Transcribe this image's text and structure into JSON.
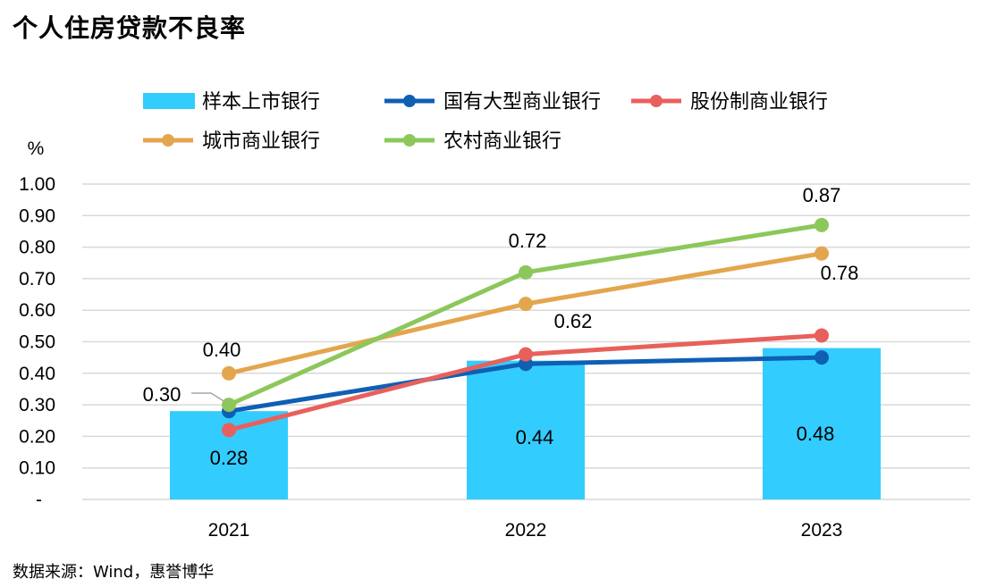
{
  "title": "个人住房贷款不良率",
  "source": "数据来源：Wind，惠誉博华",
  "chart_data": {
    "type": "bar+line",
    "ylabel": "%",
    "ylim": [
      0,
      1.0
    ],
    "y_ticks": [
      "-",
      "0.10",
      "0.20",
      "0.30",
      "0.40",
      "0.50",
      "0.60",
      "0.70",
      "0.80",
      "0.90",
      "1.00"
    ],
    "categories": [
      "2021",
      "2022",
      "2023"
    ],
    "bar_series": {
      "name": "样本上市银行",
      "color": "#33CCFF",
      "values": [
        0.28,
        0.44,
        0.48
      ]
    },
    "line_series": [
      {
        "name": "国有大型商业银行",
        "color": "#0F5FB3",
        "values": [
          0.28,
          0.43,
          0.45
        ]
      },
      {
        "name": "股份制商业银行",
        "color": "#E8605C",
        "values": [
          0.22,
          0.46,
          0.52
        ]
      },
      {
        "name": "城市商业银行",
        "color": "#E3A64E",
        "values": [
          0.4,
          0.62,
          0.78
        ]
      },
      {
        "name": "农村商业银行",
        "color": "#8CC75A",
        "values": [
          0.3,
          0.72,
          0.87
        ]
      }
    ],
    "data_labels": [
      {
        "text": "0.28",
        "series": "样本上市银行",
        "category": "2021"
      },
      {
        "text": "0.44",
        "series": "样本上市银行",
        "category": "2022"
      },
      {
        "text": "0.48",
        "series": "样本上市银行",
        "category": "2023"
      },
      {
        "text": "0.40",
        "series": "城市商业银行",
        "category": "2021"
      },
      {
        "text": "0.62",
        "series": "城市商业银行",
        "category": "2022"
      },
      {
        "text": "0.78",
        "series": "城市商业银行",
        "category": "2023"
      },
      {
        "text": "0.30",
        "series": "农村商业银行",
        "category": "2021"
      },
      {
        "text": "0.72",
        "series": "农村商业银行",
        "category": "2022"
      },
      {
        "text": "0.87",
        "series": "农村商业银行",
        "category": "2023"
      }
    ]
  }
}
